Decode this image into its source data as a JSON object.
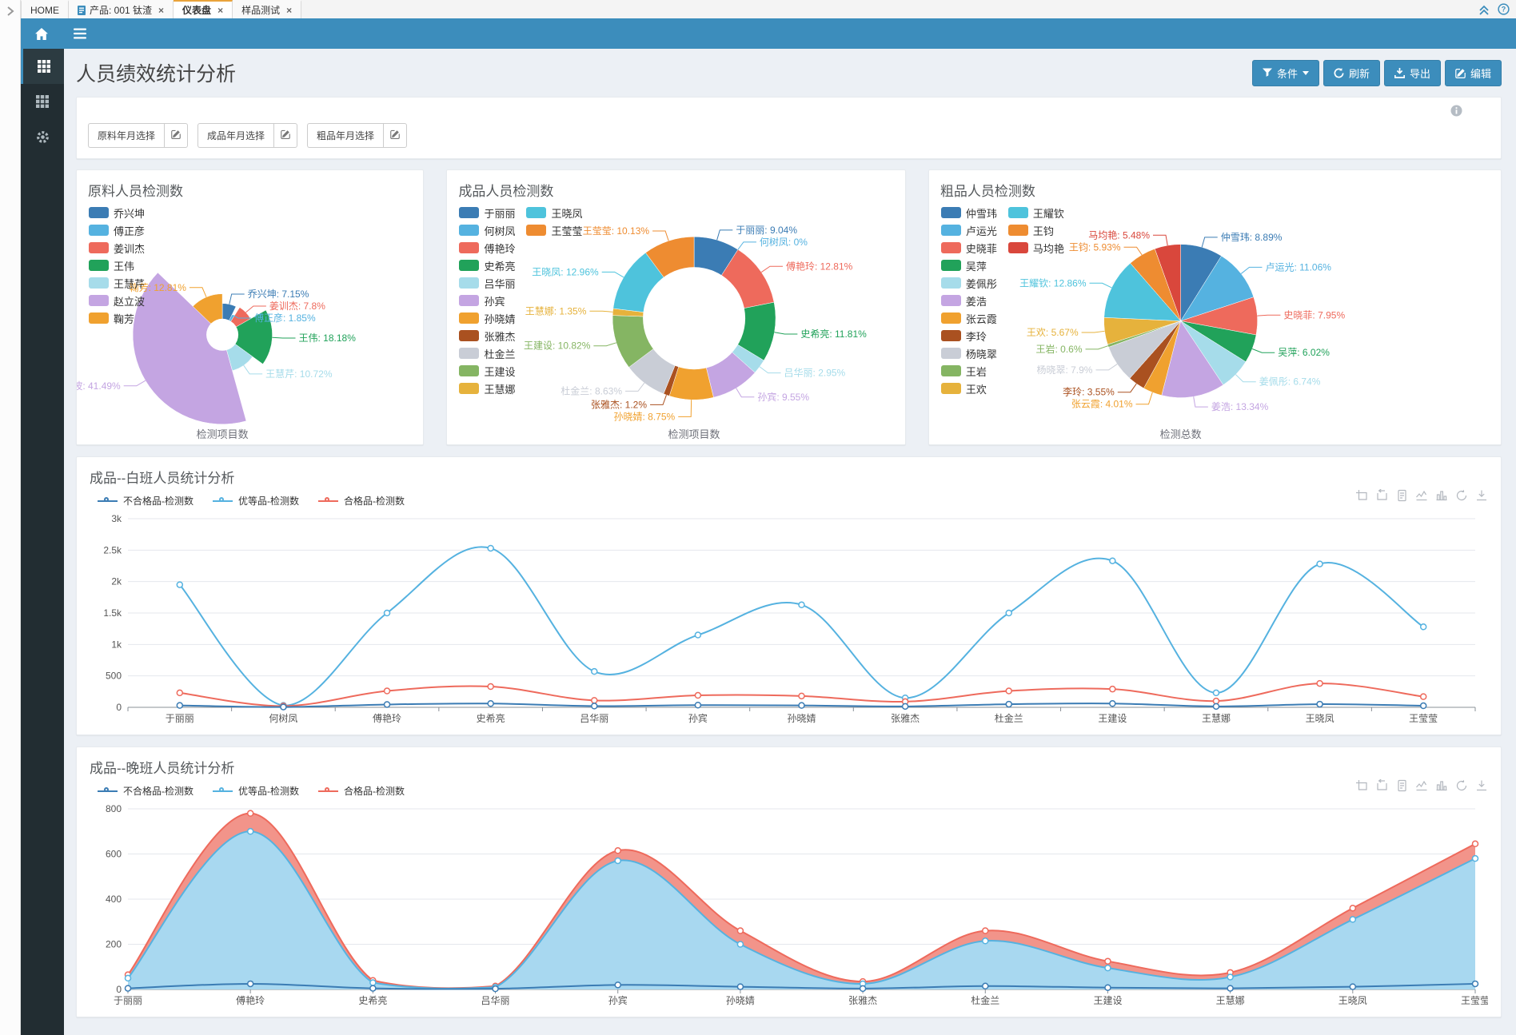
{
  "glyphs": {
    "close": "×",
    "chevron": ">"
  },
  "browser_tabs": [
    {
      "label": "HOME",
      "active": false,
      "closable": false
    },
    {
      "label": "产品: 001 钛渣",
      "active": false,
      "closable": true
    },
    {
      "label": "仪表盘",
      "active": true,
      "closable": true
    },
    {
      "label": "样品测试",
      "active": false,
      "closable": true
    }
  ],
  "page": {
    "title": "人员绩效统计分析",
    "buttons": {
      "filter": "条件",
      "refresh": "刷新",
      "export": "导出",
      "edit": "编辑"
    }
  },
  "filters": [
    {
      "label": "原料年月选择"
    },
    {
      "label": "成品年月选择"
    },
    {
      "label": "粗品年月选择"
    }
  ],
  "colors": {
    "primary": "#3c8dbc",
    "navbar": "#3c8dbc",
    "sidebar": "#222d32",
    "page_bg": "#ecf0f5",
    "active_tab_top": "#e9a33b"
  },
  "chart_data": [
    {
      "type": "pie",
      "variant": "rose",
      "title": "原料人员检测数",
      "axis_label": "检测项目数",
      "unit": "%",
      "legend_rows": 7,
      "center": [
        0.42,
        0.6
      ],
      "radius": 112,
      "inner": 20,
      "items": [
        {
          "name": "乔兴坤",
          "value": 7.15,
          "color": "#3b7cb4"
        },
        {
          "name": "傅正彦",
          "value": 1.85,
          "color": "#55b2e0"
        },
        {
          "name": "姜训杰",
          "value": 7.8,
          "color": "#ee6a5c"
        },
        {
          "name": "王伟",
          "value": 18.18,
          "color": "#21a25a"
        },
        {
          "name": "王慧芹",
          "value": 10.72,
          "color": "#a6dcea"
        },
        {
          "name": "赵立波",
          "value": 41.49,
          "color": "#c4a5e2"
        },
        {
          "name": "鞠芳",
          "value": 12.81,
          "color": "#f0a12f"
        }
      ]
    },
    {
      "type": "pie",
      "variant": "donut",
      "title": "成品人员检测数",
      "axis_label": "检测项目数",
      "unit": "%",
      "legend_rows": 11,
      "center": [
        0.54,
        0.54
      ],
      "radius": 102,
      "inner": 64,
      "items": [
        {
          "name": "于丽丽",
          "value": 9.04,
          "color": "#3b7cb4"
        },
        {
          "name": "何树凤",
          "value": 0,
          "color": "#55b2e0"
        },
        {
          "name": "傅艳玲",
          "value": 12.81,
          "color": "#ee6a5c"
        },
        {
          "name": "史希亮",
          "value": 11.81,
          "color": "#21a25a"
        },
        {
          "name": "吕华丽",
          "value": 2.95,
          "color": "#a6dcea"
        },
        {
          "name": "孙宾",
          "value": 9.55,
          "color": "#c4a5e2"
        },
        {
          "name": "孙晓婧",
          "value": 8.75,
          "color": "#f0a12f"
        },
        {
          "name": "张雅杰",
          "value": 1.2,
          "color": "#aa5120"
        },
        {
          "name": "杜金兰",
          "value": 8.63,
          "color": "#c9cdd6"
        },
        {
          "name": "王建设",
          "value": 10.82,
          "color": "#85b563"
        },
        {
          "name": "王慧娜",
          "value": 1.35,
          "color": "#e6b23c"
        },
        {
          "name": "王晓凤",
          "value": 12.96,
          "color": "#4ec3dc"
        },
        {
          "name": "王莹莹",
          "value": 10.13,
          "color": "#ee8c31"
        }
      ]
    },
    {
      "type": "pie",
      "variant": "pie",
      "title": "粗品人员检测数",
      "axis_label": "检测总数",
      "unit": "%",
      "legend_rows": 11,
      "center": [
        0.44,
        0.55
      ],
      "radius": 96,
      "inner": 0,
      "items": [
        {
          "name": "仲雪玮",
          "value": 8.89,
          "color": "#3b7cb4"
        },
        {
          "name": "卢运光",
          "value": 11.06,
          "color": "#55b2e0"
        },
        {
          "name": "史晓菲",
          "value": 7.95,
          "color": "#ee6a5c"
        },
        {
          "name": "吴萍",
          "value": 6.02,
          "color": "#21a25a"
        },
        {
          "name": "姜佩彤",
          "value": 6.74,
          "color": "#a6dcea"
        },
        {
          "name": "姜浩",
          "value": 13.34,
          "color": "#c4a5e2"
        },
        {
          "name": "张云霞",
          "value": 4.01,
          "color": "#f0a12f"
        },
        {
          "name": "李玲",
          "value": 3.55,
          "color": "#aa5120"
        },
        {
          "name": "杨晓翠",
          "value": 7.9,
          "color": "#c9cdd6"
        },
        {
          "name": "王岩",
          "value": 0.6,
          "color": "#85b563"
        },
        {
          "name": "王欢",
          "value": 5.67,
          "color": "#e6b23c"
        },
        {
          "name": "王耀钦",
          "value": 12.86,
          "color": "#4ec3dc"
        },
        {
          "name": "王钧",
          "value": 5.93,
          "color": "#ee8c31"
        },
        {
          "name": "马均艳",
          "value": 5.48,
          "color": "#d9473c"
        }
      ]
    },
    {
      "type": "line",
      "title": "成品--白班人员统计分析",
      "boundary_gap": true,
      "categories": [
        "于丽丽",
        "何树凤",
        "傅艳玲",
        "史希亮",
        "吕华丽",
        "孙宾",
        "孙晓婧",
        "张雅杰",
        "杜金兰",
        "王建设",
        "王慧娜",
        "王晓凤",
        "王莹莹"
      ],
      "legend": [
        {
          "name": "不合格品-检测数",
          "color": "#3b7cb4"
        },
        {
          "name": "优等品-检测数",
          "color": "#55b2e0"
        },
        {
          "name": "合格品-检测数",
          "color": "#ee6a5c"
        }
      ],
      "series": [
        {
          "name": "优等品-检测数",
          "color": "#55b2e0",
          "values": [
            1950,
            30,
            1500,
            2530,
            570,
            1150,
            1630,
            150,
            1500,
            2330,
            230,
            2280,
            1280
          ]
        },
        {
          "name": "合格品-检测数",
          "color": "#ee6a5c",
          "values": [
            230,
            20,
            260,
            330,
            110,
            190,
            180,
            90,
            260,
            290,
            100,
            380,
            170
          ]
        },
        {
          "name": "不合格品-检测数",
          "color": "#3b7cb4",
          "values": [
            30,
            5,
            45,
            60,
            20,
            35,
            30,
            15,
            50,
            60,
            15,
            50,
            25
          ]
        }
      ],
      "ylim": [
        0,
        3000
      ],
      "yticks": [
        {
          "v": 0,
          "label": "0"
        },
        {
          "v": 500,
          "label": "500"
        },
        {
          "v": 1000,
          "label": "1k"
        },
        {
          "v": 1500,
          "label": "1.5k"
        },
        {
          "v": 2000,
          "label": "2k"
        },
        {
          "v": 2500,
          "label": "2.5k"
        },
        {
          "v": 3000,
          "label": "3k"
        }
      ]
    },
    {
      "type": "area",
      "title": "成品--晚班人员统计分析",
      "boundary_gap": false,
      "categories": [
        "于丽丽",
        "傅艳玲",
        "史希亮",
        "吕华丽",
        "孙宾",
        "孙晓婧",
        "张雅杰",
        "杜金兰",
        "王建设",
        "王慧娜",
        "王晓凤",
        "王莹莹"
      ],
      "legend": [
        {
          "name": "不合格品-检测数",
          "color": "#3b7cb4"
        },
        {
          "name": "优等品-检测数",
          "color": "#55b2e0"
        },
        {
          "name": "合格品-检测数",
          "color": "#ee6a5c"
        }
      ],
      "series": [
        {
          "name": "合格品-检测数",
          "color": "#ee6a5c",
          "area": "#f2948a",
          "values": [
            65,
            780,
            40,
            15,
            615,
            260,
            35,
            260,
            125,
            75,
            360,
            645
          ]
        },
        {
          "name": "优等品-检测数",
          "color": "#55b2e0",
          "area": "#a8d8f0",
          "values": [
            50,
            700,
            30,
            10,
            570,
            200,
            25,
            215,
            95,
            55,
            310,
            580
          ]
        },
        {
          "name": "不合格品-检测数",
          "color": "#3b7cb4",
          "values": [
            5,
            25,
            5,
            3,
            20,
            12,
            4,
            15,
            8,
            5,
            12,
            25
          ]
        }
      ],
      "ylim": [
        0,
        800
      ],
      "yticks": [
        {
          "v": 0,
          "label": "0"
        },
        {
          "v": 200,
          "label": "200"
        },
        {
          "v": 400,
          "label": "400"
        },
        {
          "v": 600,
          "label": "600"
        },
        {
          "v": 800,
          "label": "800"
        }
      ]
    }
  ]
}
